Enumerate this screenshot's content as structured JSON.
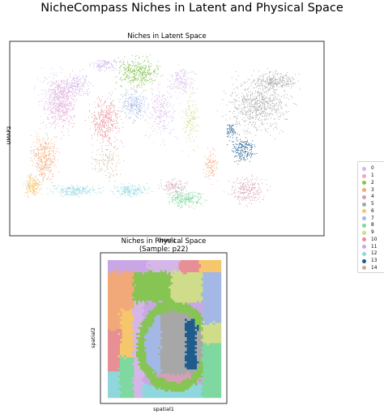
{
  "figure": {
    "title": "NicheCompass Niches in Latent and Physical Space"
  },
  "chart_data": [
    {
      "type": "scatter",
      "title": "Niches in Latent Space",
      "xlabel": "UMAP1",
      "ylabel": "UMAP2",
      "grid": false,
      "legend": "right",
      "series": [
        {
          "name": "0",
          "color": "#d5b6e8"
        },
        {
          "name": "1",
          "color": "#e9a6d6"
        },
        {
          "name": "2",
          "color": "#86c454"
        },
        {
          "name": "3",
          "color": "#f2a97a"
        },
        {
          "name": "4",
          "color": "#d59fb6"
        },
        {
          "name": "5",
          "color": "#a7a7a7"
        },
        {
          "name": "6",
          "color": "#f5c66c"
        },
        {
          "name": "7",
          "color": "#a3b8e5"
        },
        {
          "name": "8",
          "color": "#7ed8a0"
        },
        {
          "name": "9",
          "color": "#cfdc8a"
        },
        {
          "name": "10",
          "color": "#e88e95"
        },
        {
          "name": "11",
          "color": "#c9a7e6"
        },
        {
          "name": "12",
          "color": "#8fd7dd"
        },
        {
          "name": "13",
          "color": "#1d5c8d"
        },
        {
          "name": "14",
          "color": "#c9b08a"
        }
      ]
    },
    {
      "type": "heatmap",
      "title": "Niches in Physical Space",
      "subtitle": "(Sample: p22)",
      "xlabel": "spatial1",
      "ylabel": "spatial2",
      "grid": false
    }
  ]
}
